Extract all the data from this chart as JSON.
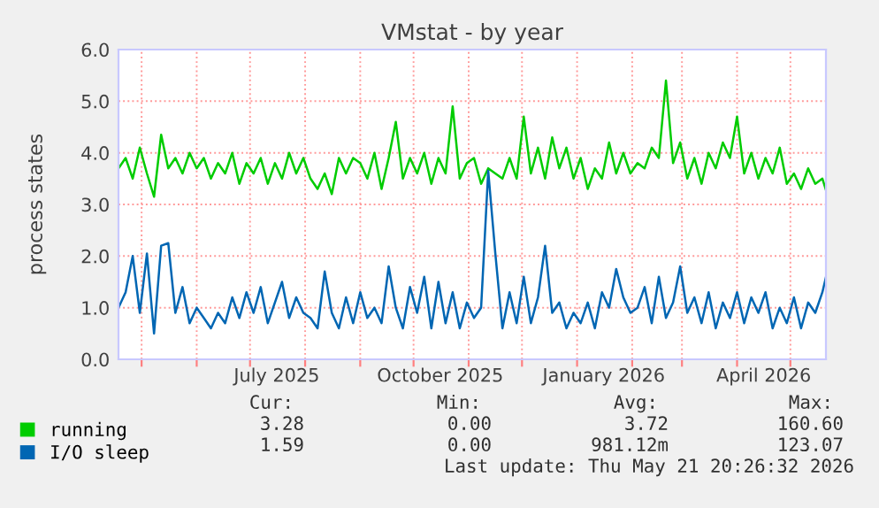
{
  "chart_data": {
    "type": "line",
    "title": "VMstat - by year",
    "ylabel": "process states",
    "x": [
      "2025-04-18",
      "2025-04-22",
      "2025-04-26",
      "2025-04-30",
      "2025-05-04",
      "2025-05-08",
      "2025-05-12",
      "2025-05-16",
      "2025-05-20",
      "2025-05-24",
      "2025-05-28",
      "2025-06-01",
      "2025-06-05",
      "2025-06-09",
      "2025-06-13",
      "2025-06-17",
      "2025-06-21",
      "2025-06-25",
      "2025-06-29",
      "2025-07-03",
      "2025-07-07",
      "2025-07-11",
      "2025-07-15",
      "2025-07-19",
      "2025-07-23",
      "2025-07-27",
      "2025-07-31",
      "2025-08-04",
      "2025-08-08",
      "2025-08-12",
      "2025-08-16",
      "2025-08-20",
      "2025-08-24",
      "2025-08-28",
      "2025-09-01",
      "2025-09-05",
      "2025-09-09",
      "2025-09-13",
      "2025-09-17",
      "2025-09-21",
      "2025-09-25",
      "2025-09-29",
      "2025-10-03",
      "2025-10-07",
      "2025-10-11",
      "2025-10-15",
      "2025-10-19",
      "2025-10-23",
      "2025-10-27",
      "2025-10-31",
      "2025-11-04",
      "2025-11-08",
      "2025-11-12",
      "2025-11-16",
      "2025-11-20",
      "2025-11-24",
      "2025-11-28",
      "2025-12-02",
      "2025-12-06",
      "2025-12-10",
      "2025-12-14",
      "2025-12-18",
      "2025-12-22",
      "2025-12-26",
      "2025-12-30",
      "2026-01-03",
      "2026-01-07",
      "2026-01-11",
      "2026-01-15",
      "2026-01-19",
      "2026-01-23",
      "2026-01-27",
      "2026-01-31",
      "2026-02-04",
      "2026-02-08",
      "2026-02-12",
      "2026-02-16",
      "2026-02-20",
      "2026-02-24",
      "2026-02-28",
      "2026-03-04",
      "2026-03-08",
      "2026-03-12",
      "2026-03-16",
      "2026-03-20",
      "2026-03-24",
      "2026-03-28",
      "2026-04-01",
      "2026-04-05",
      "2026-04-09",
      "2026-04-13",
      "2026-04-17",
      "2026-04-21",
      "2026-04-25",
      "2026-04-29",
      "2026-05-03",
      "2026-05-07",
      "2026-05-11",
      "2026-05-15",
      "2026-05-19",
      "2026-05-21"
    ],
    "series": [
      {
        "name": "running",
        "color": "#00cc00",
        "values": [
          3.7,
          3.9,
          3.5,
          4.1,
          3.6,
          3.15,
          4.35,
          3.7,
          3.9,
          3.6,
          4.0,
          3.7,
          3.9,
          3.5,
          3.8,
          3.6,
          4.0,
          3.4,
          3.8,
          3.6,
          3.9,
          3.4,
          3.8,
          3.5,
          4.0,
          3.6,
          3.9,
          3.5,
          3.3,
          3.6,
          3.2,
          3.9,
          3.6,
          3.9,
          3.8,
          3.5,
          4.0,
          3.3,
          3.9,
          4.6,
          3.5,
          3.9,
          3.6,
          4.0,
          3.4,
          3.9,
          3.6,
          4.9,
          3.5,
          3.8,
          3.9,
          3.4,
          3.7,
          3.6,
          3.5,
          3.9,
          3.5,
          4.7,
          3.6,
          4.1,
          3.5,
          4.3,
          3.7,
          4.1,
          3.5,
          3.9,
          3.3,
          3.7,
          3.5,
          4.2,
          3.6,
          4.0,
          3.6,
          3.8,
          3.7,
          4.1,
          3.9,
          5.4,
          3.8,
          4.2,
          3.5,
          3.9,
          3.4,
          4.0,
          3.7,
          4.2,
          3.9,
          4.7,
          3.6,
          4.0,
          3.5,
          3.9,
          3.6,
          4.1,
          3.4,
          3.6,
          3.3,
          3.7,
          3.4,
          3.5,
          3.28
        ]
      },
      {
        "name": "I/O sleep",
        "color": "#0066b3",
        "values": [
          1.0,
          1.3,
          2.0,
          0.9,
          2.05,
          0.5,
          2.2,
          2.25,
          0.9,
          1.4,
          0.7,
          1.0,
          0.8,
          0.6,
          0.9,
          0.7,
          1.2,
          0.8,
          1.3,
          0.9,
          1.4,
          0.7,
          1.1,
          1.5,
          0.8,
          1.2,
          0.9,
          0.8,
          0.6,
          1.7,
          0.9,
          0.6,
          1.2,
          0.7,
          1.3,
          0.8,
          1.0,
          0.7,
          1.8,
          1.0,
          0.6,
          1.4,
          0.9,
          1.6,
          0.6,
          1.5,
          0.7,
          1.3,
          0.6,
          1.1,
          0.8,
          1.0,
          3.65,
          2.05,
          0.6,
          1.3,
          0.7,
          1.6,
          0.7,
          1.2,
          2.2,
          0.9,
          1.1,
          0.6,
          0.9,
          0.7,
          1.1,
          0.6,
          1.3,
          1.0,
          1.75,
          1.2,
          0.9,
          1.0,
          1.4,
          0.7,
          1.6,
          0.8,
          1.1,
          1.8,
          0.9,
          1.2,
          0.7,
          1.3,
          0.6,
          1.1,
          0.8,
          1.3,
          0.7,
          1.2,
          0.9,
          1.3,
          0.6,
          1.0,
          0.7,
          1.2,
          0.6,
          1.1,
          0.9,
          1.3,
          1.59
        ]
      }
    ],
    "xlim": [
      "2025-04-18",
      "2026-05-21"
    ],
    "xticks": [
      {
        "value": "2025-05-01",
        "label": null
      },
      {
        "value": "2025-06-01",
        "label": null
      },
      {
        "value": "2025-07-01",
        "label": null
      },
      {
        "value": "2025-07-16",
        "label": "July 2025"
      },
      {
        "value": "2025-08-01",
        "label": null
      },
      {
        "value": "2025-09-01",
        "label": null
      },
      {
        "value": "2025-10-01",
        "label": null
      },
      {
        "value": "2025-10-16",
        "label": "October 2025"
      },
      {
        "value": "2025-11-01",
        "label": null
      },
      {
        "value": "2025-12-01",
        "label": null
      },
      {
        "value": "2026-01-01",
        "label": null
      },
      {
        "value": "2026-01-16",
        "label": "January 2026"
      },
      {
        "value": "2026-02-01",
        "label": null
      },
      {
        "value": "2026-03-01",
        "label": null
      },
      {
        "value": "2026-04-01",
        "label": null
      },
      {
        "value": "2026-04-16",
        "label": "April 2026"
      },
      {
        "value": "2026-05-01",
        "label": null
      }
    ],
    "ylim": [
      0,
      6
    ],
    "yticks": [
      {
        "value": 0,
        "label": "0.0"
      },
      {
        "value": 1,
        "label": "1.0"
      },
      {
        "value": 2,
        "label": "2.0"
      },
      {
        "value": 3,
        "label": "3.0"
      },
      {
        "value": 4,
        "label": "4.0"
      },
      {
        "value": 5,
        "label": "5.0"
      },
      {
        "value": 6,
        "label": "6.0"
      }
    ],
    "grid": true,
    "legend": "bottom left",
    "marker": "none",
    "line_style": "solid",
    "annotations": [
      "Cur:",
      "Min:",
      "Avg:",
      "Max:",
      "3.28",
      "0.00",
      "3.72",
      "160.60",
      "1.59",
      "0.00",
      "981.12m",
      "123.07",
      "Last update: Thu May 21 20:26:32 2026"
    ]
  }
}
